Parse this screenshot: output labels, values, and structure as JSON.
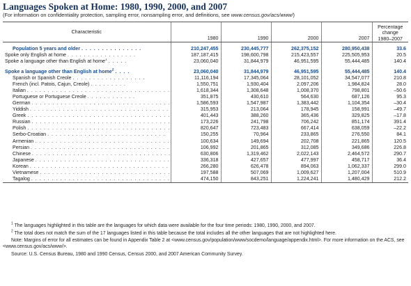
{
  "title": "Languages Spoken at Home: 1980, 1990, 2000, and 2007",
  "subtitle_prefix": "(For information on confidentiality protection, sampling error, nonsampling error, and definitions, see ",
  "subtitle_url": "www.census.gov/acs/www/",
  "subtitle_suffix": ")",
  "header": {
    "characteristic": "Characteristic",
    "y1980": "1980",
    "y1990": "1990",
    "y2000": "2000",
    "y2007": "2007",
    "pct_line1": "Percentage",
    "pct_line2": "change",
    "pct_line3": "1980–2007"
  },
  "summary_rows": [
    {
      "label": "Population 5 years and older",
      "sup": "",
      "dots": ". . . . . . . . . . . . . . .",
      "v1980": "210,247,455",
      "v1990": "230,445,777",
      "v2000": "262,375,152",
      "v2007": "280,950,438",
      "pct": "33.6",
      "highlight": true
    },
    {
      "label": "Spoke only English at home",
      "sup": "",
      "dots": ". . . . . . . . . . . . . . . . .",
      "v1980": "187,187,415",
      "v1990": "198,600,798",
      "v2000": "215,423,557",
      "v2007": "225,505,953",
      "pct": "20.5",
      "highlight": false
    },
    {
      "label": "Spoke a language other than English at home",
      "sup": "1",
      "dots": ". . . . .",
      "v1980": "23,060,040",
      "v1990": "31,844,979",
      "v2000": "46,951,595",
      "v2007": "55,444,485",
      "pct": "140.4",
      "highlight": false
    }
  ],
  "detail_header": {
    "label": "Spoke a language other than English at home",
    "sup": "2",
    "dots": ". . . .",
    "v1980": "23,060,040",
    "v1990": "31,844,979",
    "v2000": "46,951,595",
    "v2007": "55,444,485",
    "pct": "140.4"
  },
  "languages": [
    {
      "label": "Spanish or Spanish Creole",
      "dots": ". . . . . . . . . . . . . . . . . .",
      "v1980": "11,116,194",
      "v1990": "17,345,064",
      "v2000": "28,101,052",
      "v2007": "34,547,077",
      "pct": "210.8"
    },
    {
      "label": "French (incl. Patois, Cajun, Creole)",
      "dots": ". . . . . . . . .",
      "v1980": "1,550,751",
      "v1990": "1,930,404",
      "v2000": "2,097,206",
      "v2007": "1,984,824",
      "pct": "28.0"
    },
    {
      "label": "Italian",
      "dots": ". . . . . . . . . . . . . . . . . . . . . . . . . . . . . . . . . . .",
      "v1980": "1,618,344",
      "v1990": "1,308,648",
      "v2000": "1,008,370",
      "v2007": "798,801",
      "pct": "–50.6"
    },
    {
      "label": "Portuguese or Portuguese Creole",
      "dots": ". . . . . . . . . . . .",
      "v1980": "351,875",
      "v1990": "430,610",
      "v2000": "564,630",
      "v2007": "687,126",
      "pct": "95.3"
    },
    {
      "label": "German",
      "dots": ". . . . . . . . . . . . . . . . . . . . . . . . . . . . . . . . . .",
      "v1980": "1,586,593",
      "v1990": "1,547,987",
      "v2000": "1,383,442",
      "v2007": "1,104,354",
      "pct": "–30.4"
    },
    {
      "label": "Yiddish",
      "dots": ". . . . . . . . . . . . . . . . . . . . . . . . . . . . . . . . . .",
      "v1980": "315,953",
      "v1990": "213,064",
      "v2000": "178,945",
      "v2007": "158,991",
      "pct": "–49.7"
    },
    {
      "label": "Greek",
      "dots": ". . . . . . . . . . . . . . . . . . . . . . . . . . . . . . . . . . .",
      "v1980": "401,443",
      "v1990": "388,260",
      "v2000": "365,436",
      "v2007": "329,825",
      "pct": "–17.8"
    },
    {
      "label": "Russian",
      "dots": ". . . . . . . . . . . . . . . . . . . . . . . . . . . . . . . . . .",
      "v1980": "173,226",
      "v1990": "241,798",
      "v2000": "706,242",
      "v2007": "851,174",
      "pct": "391.4"
    },
    {
      "label": "Polish",
      "dots": ". . . . . . . . . . . . . . . . . . . . . . . . . . . . . . . . . . .",
      "v1980": "820,647",
      "v1990": "723,483",
      "v2000": "667,414",
      "v2007": "638,059",
      "pct": "–22.2"
    },
    {
      "label": "Serbo-Croatian",
      "dots": ". . . . . . . . . . . . . . . . . . . . . . . . . . . . .",
      "v1980": "150,255",
      "v1990": "70,964",
      "v2000": "233,865",
      "v2007": "276,550",
      "pct": "84.1"
    },
    {
      "label": "Armenian",
      "dots": ". . . . . . . . . . . . . . . . . . . . . . . . . . . . . . . . .",
      "v1980": "100,634",
      "v1990": "149,694",
      "v2000": "202,708",
      "v2007": "221,865",
      "pct": "120.5"
    },
    {
      "label": "Persian",
      "dots": ". . . . . . . . . . . . . . . . . . . . . . . . . . . . . . . . . .",
      "v1980": "106,992",
      "v1990": "201,865",
      "v2000": "312,085",
      "v2007": "349,686",
      "pct": "226.8"
    },
    {
      "label": "Chinese",
      "dots": ". . . . . . . . . . . . . . . . . . . . . . . . . . . . . . . . . .",
      "v1980": "630,806",
      "v1990": "1,319,462",
      "v2000": "2,022,143",
      "v2007": "2,464,572",
      "pct": "290.7"
    },
    {
      "label": "Japanese",
      "dots": ". . . . . . . . . . . . . . . . . . . . . . . . . . . . . . . . .",
      "v1980": "336,318",
      "v1990": "427,657",
      "v2000": "477,997",
      "v2007": "458,717",
      "pct": "36.4"
    },
    {
      "label": "Korean",
      "dots": ". . . . . . . . . . . . . . . . . . . . . . . . . . . . . . . . . .",
      "v1980": "266,280",
      "v1990": "626,478",
      "v2000": "894,063",
      "v2007": "1,062,337",
      "pct": "299.0"
    },
    {
      "label": "Vietnamese",
      "dots": ". . . . . . . . . . . . . . . . . . . . . . . . . . . . . . . .",
      "v1980": "197,588",
      "v1990": "507,069",
      "v2000": "1,009,627",
      "v2007": "1,207,004",
      "pct": "510.9"
    },
    {
      "label": "Tagalog",
      "dots": ". . . . . . . . . . . . . . . . . . . . . . . . . . . . . . . . . .",
      "v1980": "474,150",
      "v1990": "843,251",
      "v2000": "1,224,241",
      "v2007": "1,480,429",
      "pct": "212.2"
    }
  ],
  "notes": {
    "n1_sup": "1",
    "n1": " The languages highlighted in this table are the languages for which data were available for the four time periods: 1980, 1990, 2000, and 2007.",
    "n2_sup": "2",
    "n2": " The total does not match the sum of the 17 languages listed in this table because the total includes all the other languages that are not highlighted here.",
    "margins": "Note: Margins of error for all estimates can be found in Appendix Table 2 at <www.census.gov/population/www/socdemo/language/appendix.html>. For more information on the ACS, see <www.census.gov/acs/www/>.",
    "source": "Source: U.S. Census Bureau, 1980 and 1990 Census, Census 2000, and 2007 American Community Survey."
  }
}
